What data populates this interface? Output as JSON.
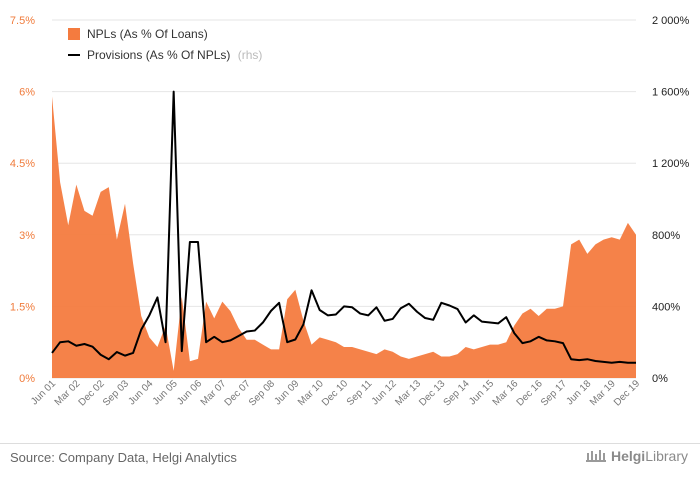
{
  "chart_data": {
    "type": "area",
    "x_ticks": [
      "Jun 01",
      "Mar 02",
      "Dec 02",
      "Sep 03",
      "Jun 04",
      "Jun 05",
      "Jun 06",
      "Mar 07",
      "Dec 07",
      "Sep 08",
      "Jun 09",
      "Mar 10",
      "Dec 10",
      "Sep 11",
      "Jun 12",
      "Mar 13",
      "Dec 13",
      "Sep 14",
      "Jun 15",
      "Mar 16",
      "Dec 16",
      "Sep 17",
      "Jun 18",
      "Mar 19",
      "Dec 19"
    ],
    "y_left": {
      "ticks": [
        "0%",
        "1.5%",
        "3%",
        "4.5%",
        "6%",
        "7.5%"
      ],
      "range": [
        0,
        7.5
      ]
    },
    "y_right": {
      "ticks": [
        "0%",
        "400%",
        "800%",
        "1 200%",
        "1 600%",
        "2 000%"
      ],
      "range": [
        0,
        2000
      ]
    },
    "grid": true,
    "legend": {
      "position": "top-left",
      "entries": [
        {
          "label": "NPLs (As % Of Loans)",
          "color": "#f47b3f"
        },
        {
          "label": "Provisions (As % Of NPLs)",
          "suffix": "(rhs)",
          "color": "#000000"
        }
      ]
    },
    "series": [
      {
        "name": "NPLs (As % Of Loans)",
        "axis": "left",
        "type": "area",
        "values": [
          5.9,
          4.1,
          3.2,
          4.05,
          3.5,
          3.4,
          3.9,
          4.0,
          2.9,
          3.65,
          2.4,
          1.3,
          0.85,
          0.65,
          1.1,
          0.15,
          1.7,
          0.35,
          0.4,
          1.6,
          1.25,
          1.6,
          1.4,
          1.05,
          0.8,
          0.8,
          0.7,
          0.6,
          0.6,
          1.65,
          1.85,
          1.2,
          0.7,
          0.85,
          0.8,
          0.75,
          0.65,
          0.65,
          0.6,
          0.55,
          0.5,
          0.6,
          0.55,
          0.45,
          0.4,
          0.45,
          0.5,
          0.55,
          0.45,
          0.45,
          0.5,
          0.65,
          0.6,
          0.65,
          0.7,
          0.7,
          0.75,
          1.1,
          1.35,
          1.45,
          1.3,
          1.45,
          1.45,
          1.5,
          2.8,
          2.9,
          2.6,
          2.8,
          2.9,
          2.95,
          2.9,
          3.25,
          3.0
        ]
      },
      {
        "name": "Provisions (As % Of NPLs)",
        "axis": "right",
        "type": "line",
        "values": [
          140,
          200,
          205,
          180,
          190,
          175,
          130,
          105,
          145,
          125,
          140,
          270,
          350,
          450,
          200,
          1600,
          150,
          760,
          760,
          200,
          230,
          200,
          210,
          235,
          260,
          265,
          310,
          375,
          420,
          200,
          215,
          300,
          490,
          380,
          350,
          355,
          400,
          395,
          360,
          350,
          395,
          320,
          330,
          390,
          415,
          370,
          335,
          325,
          420,
          405,
          385,
          310,
          350,
          315,
          310,
          305,
          340,
          250,
          195,
          205,
          230,
          210,
          205,
          195,
          105,
          100,
          105,
          95,
          90,
          85,
          90,
          85,
          85
        ]
      }
    ],
    "source": "Source: Company Data, Helgi Analytics",
    "brand": {
      "prefix": "Helgi",
      "suffix": "Library"
    }
  }
}
